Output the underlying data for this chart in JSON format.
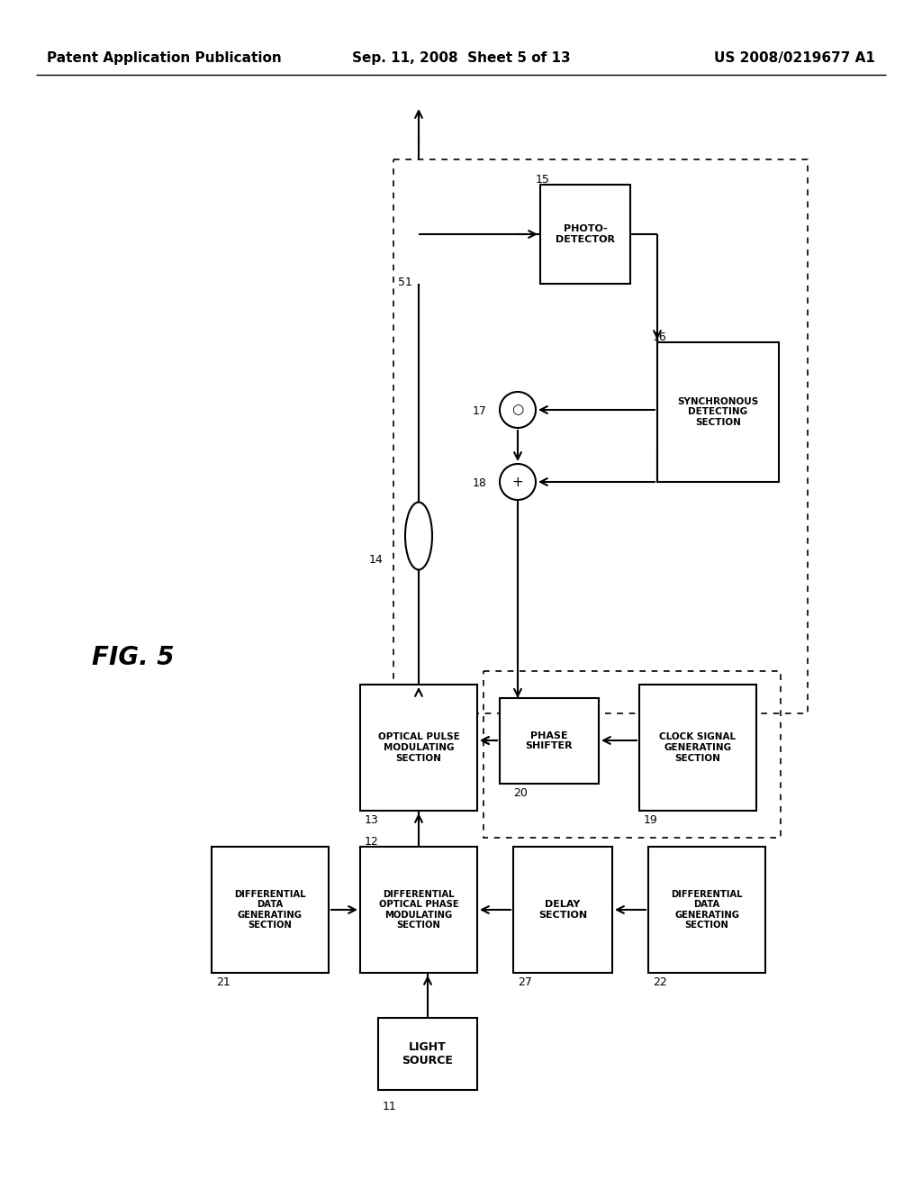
{
  "title_left": "Patent Application Publication",
  "title_mid": "Sep. 11, 2008  Sheet 5 of 13",
  "title_right": "US 2008/0219677 A1",
  "fig_label": "FIG. 5",
  "bg_color": "#ffffff"
}
